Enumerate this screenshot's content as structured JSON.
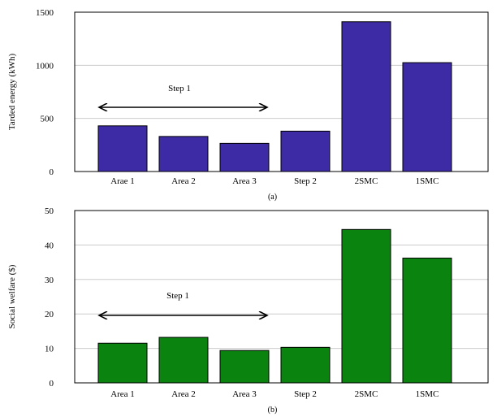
{
  "colors": {
    "panel_a_bar": "#3d2aa5",
    "panel_b_bar": "#0a830f",
    "bar_edge": "#000000",
    "grid": "#cccccc",
    "axis": "#000000"
  },
  "chart_data": [
    {
      "type": "bar",
      "panel_label": "(a)",
      "categories": [
        "Arae 1",
        "Area 2",
        "Area 3",
        "Step 2",
        "2SMC",
        "1SMC"
      ],
      "values": [
        430,
        330,
        265,
        380,
        1410,
        1025
      ],
      "ylabel": "Tarded energy (kWh)",
      "xlabel": "",
      "ylim": [
        0,
        1500
      ],
      "yticks": [
        0,
        500,
        1000,
        1500
      ],
      "grid": true,
      "annotation": {
        "text": "Step 1",
        "type": "double-arrow",
        "spans": [
          "Arae 1",
          "Area 3"
        ]
      }
    },
    {
      "type": "bar",
      "panel_label": "(b)",
      "categories": [
        "Area 1",
        "Area 2",
        "Area 3",
        "Step 2",
        "2SMC",
        "1SMC"
      ],
      "values": [
        11.5,
        13.2,
        9.4,
        10.3,
        44.5,
        36.2
      ],
      "ylabel": "Social welfare ($)",
      "xlabel": "",
      "ylim": [
        0,
        50
      ],
      "yticks": [
        0,
        10,
        20,
        30,
        40,
        50
      ],
      "grid": true,
      "annotation": {
        "text": "Step 1",
        "type": "double-arrow",
        "spans": [
          "Area 1",
          "Area 3"
        ]
      }
    }
  ]
}
